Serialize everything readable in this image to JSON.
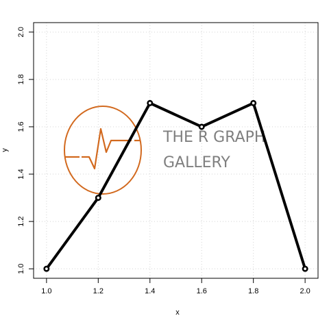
{
  "chart_data": {
    "type": "line",
    "x": [
      1.0,
      1.2,
      1.4,
      1.6,
      1.8,
      2.0
    ],
    "y": [
      1.0,
      1.3,
      1.7,
      1.6,
      1.7,
      1.0
    ],
    "xlabel": "x",
    "ylabel": "y",
    "xlim": [
      0.95,
      2.05
    ],
    "ylim": [
      0.96,
      2.04
    ],
    "xticks": [
      "1.0",
      "1.2",
      "1.4",
      "1.6",
      "1.8",
      "2.0"
    ],
    "yticks": [
      "1.0",
      "1.2",
      "1.4",
      "1.6",
      "1.8",
      "2.0"
    ],
    "grid": true,
    "line_color": "#000000",
    "grid_color": "#d3d3d3"
  },
  "watermark": {
    "line1": "THE R GRAPH",
    "line2": "GALLERY",
    "accent_color": "#d2691e",
    "text_color": "#7f7f7f",
    "icon": "pulse-circle-icon"
  }
}
